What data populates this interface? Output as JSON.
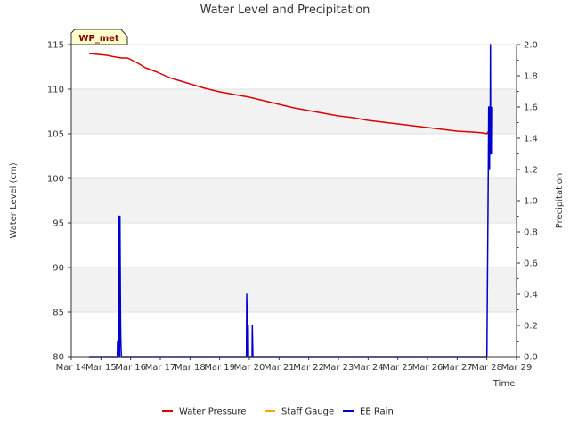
{
  "chart_data": {
    "type": "line",
    "title": "Water Level and Precipitation",
    "xlabel": "Time",
    "ylabel": "Water Level (cm)",
    "y2label": "Precipitation",
    "badge": "WP_met",
    "xlim": [
      14,
      29
    ],
    "x_ticks": [
      {
        "v": 14,
        "label": "Mar 14"
      },
      {
        "v": 15,
        "label": "Mar 15"
      },
      {
        "v": 16,
        "label": "Mar 16"
      },
      {
        "v": 17,
        "label": "Mar 17"
      },
      {
        "v": 18,
        "label": "Mar 18"
      },
      {
        "v": 19,
        "label": "Mar 19"
      },
      {
        "v": 20,
        "label": "Mar 20"
      },
      {
        "v": 21,
        "label": "Mar 21"
      },
      {
        "v": 22,
        "label": "Mar 22"
      },
      {
        "v": 23,
        "label": "Mar 23"
      },
      {
        "v": 24,
        "label": "Mar 24"
      },
      {
        "v": 25,
        "label": "Mar 25"
      },
      {
        "v": 26,
        "label": "Mar 26"
      },
      {
        "v": 27,
        "label": "Mar 27"
      },
      {
        "v": 28,
        "label": "Mar 28"
      },
      {
        "v": 29,
        "label": "Mar 29"
      }
    ],
    "ylim": [
      80,
      115
    ],
    "y_ticks": [
      80,
      85,
      90,
      95,
      100,
      105,
      110,
      115
    ],
    "y2lim": [
      0,
      2.0
    ],
    "y2_ticks": [
      0.0,
      0.2,
      0.4,
      0.6,
      0.8,
      1.0,
      1.2,
      1.4,
      1.6,
      1.8,
      2.0
    ],
    "y2_tick_labels": [
      "0.0",
      "0.2",
      "0.4",
      "0.6",
      "0.8",
      "1.0",
      "1.2",
      "1.4",
      "1.6",
      "1.8",
      "2.0"
    ],
    "grid": "horizontal bands",
    "legend_position": "bottom-center",
    "series": [
      {
        "name": "Water Pressure",
        "axis": "left",
        "color": "#dd0000",
        "x": [
          14.6,
          14.9,
          15.2,
          15.5,
          15.7,
          15.9,
          16.2,
          16.5,
          16.9,
          17.3,
          17.7,
          18.1,
          18.5,
          19.0,
          19.5,
          20.0,
          20.5,
          21.0,
          21.5,
          22.0,
          22.5,
          23.0,
          23.5,
          24.0,
          24.5,
          25.0,
          25.5,
          26.0,
          26.5,
          27.0,
          27.5,
          27.9,
          28.0,
          28.15
        ],
        "y": [
          114.0,
          113.9,
          113.8,
          113.6,
          113.5,
          113.5,
          113.0,
          112.4,
          111.9,
          111.3,
          110.9,
          110.5,
          110.1,
          109.7,
          109.4,
          109.1,
          108.7,
          108.3,
          107.9,
          107.6,
          107.3,
          107.0,
          106.8,
          106.5,
          106.3,
          106.1,
          105.9,
          105.7,
          105.5,
          105.3,
          105.2,
          105.1,
          105.0,
          105.8
        ]
      },
      {
        "name": "Staff Gauge",
        "axis": "left",
        "color": "#ffa500",
        "x": [],
        "y": []
      },
      {
        "name": "EE Rain",
        "axis": "right",
        "color": "#0000cc",
        "x": [
          14.6,
          15.55,
          15.56,
          15.58,
          15.59,
          15.6,
          15.61,
          15.63,
          15.64,
          15.66,
          15.67,
          15.69,
          19.9,
          19.91,
          19.93,
          19.94,
          19.96,
          19.97,
          20.09,
          20.1,
          20.12,
          20.13,
          20.15,
          28.0,
          28.05,
          28.06,
          28.07,
          28.08,
          28.09,
          28.1,
          28.11,
          28.12,
          28.13,
          28.14,
          28.15,
          28.16
        ],
        "y": [
          0.0,
          0.0,
          0.1,
          0.0,
          0.3,
          0.9,
          0.5,
          0.0,
          0.9,
          0.3,
          0.1,
          0.0,
          0.0,
          0.4,
          0.2,
          0.0,
          0.2,
          0.0,
          0.0,
          0.2,
          0.0,
          0.0,
          0.0,
          0.0,
          1.2,
          1.6,
          1.3,
          1.6,
          1.2,
          1.6,
          1.3,
          2.0,
          1.3,
          1.6,
          1.3,
          1.6
        ]
      }
    ]
  }
}
